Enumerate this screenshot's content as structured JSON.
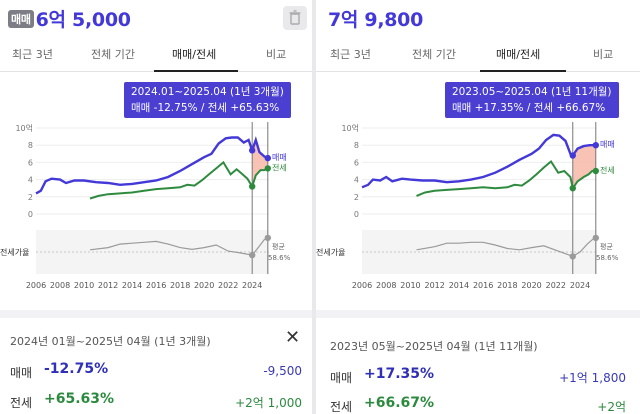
{
  "left": {
    "price_badge": "매매",
    "price": "6억 5,000",
    "tabs": [
      "최근 3년",
      "전체 기간",
      "매매/전세",
      "비교"
    ],
    "tooltip_line1": "2024.01~2025.04 (1년 3개월)",
    "tooltip_line2": "매매 -12.75%  /  전세 +65.63%",
    "summary_range": "2024년 01월~2025년 04월 (1년 3개월)",
    "sale_label": "매매",
    "sale_pct": "-12.75%",
    "sale_value": "-9,500",
    "jeonse_label": "전세",
    "jeonse_pct": "+65.63%",
    "jeonse_value": "+2억 1,000"
  },
  "right": {
    "price": "7억 9,800",
    "tabs": [
      "최근 3년",
      "전체 기간",
      "매매/전세",
      "비교"
    ],
    "tooltip_line1": "2023.05~2025.04 (1년 11개월)",
    "tooltip_line2": "매매 +17.35%  /  전세 +66.67%",
    "summary_range": "2023년 05월~2025년 04월 (1년 11개월)",
    "sale_label": "매매",
    "sale_pct": "+17.35%",
    "sale_value": "+1억 1,800",
    "jeonse_label": "전세",
    "jeonse_pct": "+66.67%",
    "jeonse_value": "+2억"
  },
  "icons": {
    "trash": "trash-icon",
    "close": "close-icon"
  },
  "colors": {
    "sale": "#4338d8",
    "jeonse": "#2e8b3e",
    "ratio": "#9a9a9a",
    "highlight": "#f7b9a8",
    "accent": "#4a3fd0"
  },
  "chart_data": [
    {
      "type": "line",
      "xlabel": "",
      "ylabel": "",
      "x_ticks": [
        "2006",
        "2008",
        "2010",
        "2012",
        "2014",
        "2016",
        "2018",
        "2020",
        "2022",
        "2024"
      ],
      "y_ticks": [
        "0",
        "2",
        "4",
        "6",
        "8",
        "10억"
      ],
      "ylim": [
        0,
        10
      ],
      "xlim": [
        2006,
        2025.4
      ],
      "series_labels": {
        "sale": "매매",
        "jeonse": "전세",
        "ratio_row": "전세가율",
        "ratio_avg_title": "평균",
        "ratio_avg_value": "58.6%"
      },
      "range": [
        2024.0,
        2025.3
      ],
      "series": [
        {
          "name": "매매",
          "points": [
            [
              2006.0,
              2.4
            ],
            [
              2006.4,
              2.7
            ],
            [
              2006.8,
              3.8
            ],
            [
              2007.3,
              4.1
            ],
            [
              2008,
              4.0
            ],
            [
              2008.5,
              3.6
            ],
            [
              2009.2,
              3.9
            ],
            [
              2010,
              3.9
            ],
            [
              2011,
              3.7
            ],
            [
              2012,
              3.6
            ],
            [
              2013,
              3.4
            ],
            [
              2014,
              3.5
            ],
            [
              2015,
              3.7
            ],
            [
              2016,
              3.9
            ],
            [
              2017,
              4.3
            ],
            [
              2018,
              5.0
            ],
            [
              2019,
              5.8
            ],
            [
              2020,
              6.6
            ],
            [
              2020.6,
              7.0
            ],
            [
              2021.2,
              8.2
            ],
            [
              2021.8,
              8.8
            ],
            [
              2022.3,
              8.9
            ],
            [
              2022.8,
              8.9
            ],
            [
              2023.3,
              8.3
            ],
            [
              2023.7,
              8.6
            ],
            [
              2024.0,
              7.4
            ],
            [
              2024.3,
              8.6
            ],
            [
              2024.6,
              7.2
            ],
            [
              2025.0,
              6.7
            ],
            [
              2025.3,
              6.5
            ]
          ]
        },
        {
          "name": "전세",
          "points": [
            [
              2010.5,
              1.8
            ],
            [
              2011.2,
              2.1
            ],
            [
              2012,
              2.3
            ],
            [
              2013,
              2.4
            ],
            [
              2014,
              2.5
            ],
            [
              2015,
              2.7
            ],
            [
              2016,
              2.9
            ],
            [
              2017,
              3.0
            ],
            [
              2018,
              3.1
            ],
            [
              2018.6,
              3.4
            ],
            [
              2019.2,
              3.3
            ],
            [
              2019.8,
              3.9
            ],
            [
              2020.4,
              4.6
            ],
            [
              2021.0,
              5.3
            ],
            [
              2021.6,
              6.0
            ],
            [
              2022.2,
              4.6
            ],
            [
              2022.7,
              5.2
            ],
            [
              2023.2,
              4.6
            ],
            [
              2023.6,
              4.1
            ],
            [
              2024.0,
              3.2
            ],
            [
              2024.3,
              4.5
            ],
            [
              2024.7,
              5.1
            ],
            [
              2025.0,
              5.1
            ],
            [
              2025.3,
              5.3
            ]
          ]
        },
        {
          "name": "전세가율",
          "points": [
            [
              2010.5,
              0.55
            ],
            [
              2012,
              0.6
            ],
            [
              2013,
              0.68
            ],
            [
              2014,
              0.7
            ],
            [
              2015,
              0.72
            ],
            [
              2016,
              0.74
            ],
            [
              2017,
              0.68
            ],
            [
              2018,
              0.6
            ],
            [
              2019,
              0.56
            ],
            [
              2020,
              0.6
            ],
            [
              2021,
              0.66
            ],
            [
              2022,
              0.52
            ],
            [
              2023,
              0.48
            ],
            [
              2024.0,
              0.43
            ],
            [
              2024.5,
              0.6
            ],
            [
              2025.0,
              0.78
            ],
            [
              2025.3,
              0.82
            ]
          ]
        }
      ]
    },
    {
      "type": "line",
      "xlabel": "",
      "ylabel": "",
      "x_ticks": [
        "2006",
        "2008",
        "2010",
        "2012",
        "2014",
        "2016",
        "2018",
        "2020",
        "2022",
        "2024"
      ],
      "y_ticks": [
        "0",
        "2",
        "4",
        "6",
        "8",
        "10억"
      ],
      "ylim": [
        0,
        10
      ],
      "xlim": [
        2006,
        2025.4
      ],
      "series_labels": {
        "sale": "매매",
        "jeonse": "전세",
        "ratio_row": "전세가율",
        "ratio_avg_title": "평균",
        "ratio_avg_value": "58.6%"
      },
      "range": [
        2023.4,
        2025.3
      ],
      "series": [
        {
          "name": "매매",
          "points": [
            [
              2006.0,
              3.1
            ],
            [
              2006.5,
              3.4
            ],
            [
              2006.9,
              4.0
            ],
            [
              2007.5,
              3.9
            ],
            [
              2008,
              4.3
            ],
            [
              2008.5,
              3.8
            ],
            [
              2009.3,
              4.1
            ],
            [
              2010,
              4.0
            ],
            [
              2011,
              3.9
            ],
            [
              2012,
              3.9
            ],
            [
              2013,
              3.7
            ],
            [
              2014,
              3.8
            ],
            [
              2015,
              4.0
            ],
            [
              2016,
              4.3
            ],
            [
              2017,
              4.8
            ],
            [
              2018,
              5.5
            ],
            [
              2019,
              6.3
            ],
            [
              2020,
              7.0
            ],
            [
              2020.6,
              7.6
            ],
            [
              2021.2,
              8.6
            ],
            [
              2021.8,
              9.2
            ],
            [
              2022.3,
              9.1
            ],
            [
              2022.8,
              8.5
            ],
            [
              2023.2,
              7.0
            ],
            [
              2023.4,
              6.8
            ],
            [
              2023.8,
              7.6
            ],
            [
              2024.3,
              7.9
            ],
            [
              2024.8,
              8.0
            ],
            [
              2025.3,
              8.0
            ]
          ]
        },
        {
          "name": "전세",
          "points": [
            [
              2010.5,
              2.1
            ],
            [
              2011.2,
              2.5
            ],
            [
              2012,
              2.7
            ],
            [
              2013,
              2.8
            ],
            [
              2014,
              2.9
            ],
            [
              2015,
              3.0
            ],
            [
              2016,
              3.1
            ],
            [
              2017,
              3.0
            ],
            [
              2018,
              3.1
            ],
            [
              2018.6,
              3.4
            ],
            [
              2019.2,
              3.3
            ],
            [
              2019.8,
              3.9
            ],
            [
              2020.4,
              4.6
            ],
            [
              2021.0,
              5.4
            ],
            [
              2021.6,
              6.1
            ],
            [
              2022.2,
              4.8
            ],
            [
              2022.7,
              5.0
            ],
            [
              2023.2,
              4.3
            ],
            [
              2023.4,
              3.0
            ],
            [
              2023.8,
              3.8
            ],
            [
              2024.3,
              4.3
            ],
            [
              2024.7,
              4.6
            ],
            [
              2025.0,
              5.0
            ],
            [
              2025.3,
              5.0
            ]
          ]
        },
        {
          "name": "전세가율",
          "points": [
            [
              2010.5,
              0.55
            ],
            [
              2012,
              0.62
            ],
            [
              2013,
              0.7
            ],
            [
              2014,
              0.7
            ],
            [
              2015,
              0.72
            ],
            [
              2016,
              0.72
            ],
            [
              2017,
              0.66
            ],
            [
              2018,
              0.58
            ],
            [
              2019,
              0.55
            ],
            [
              2020,
              0.6
            ],
            [
              2021,
              0.64
            ],
            [
              2022,
              0.54
            ],
            [
              2023,
              0.44
            ],
            [
              2023.4,
              0.4
            ],
            [
              2024.0,
              0.5
            ],
            [
              2024.6,
              0.68
            ],
            [
              2025.0,
              0.78
            ],
            [
              2025.3,
              0.82
            ]
          ]
        }
      ]
    }
  ]
}
